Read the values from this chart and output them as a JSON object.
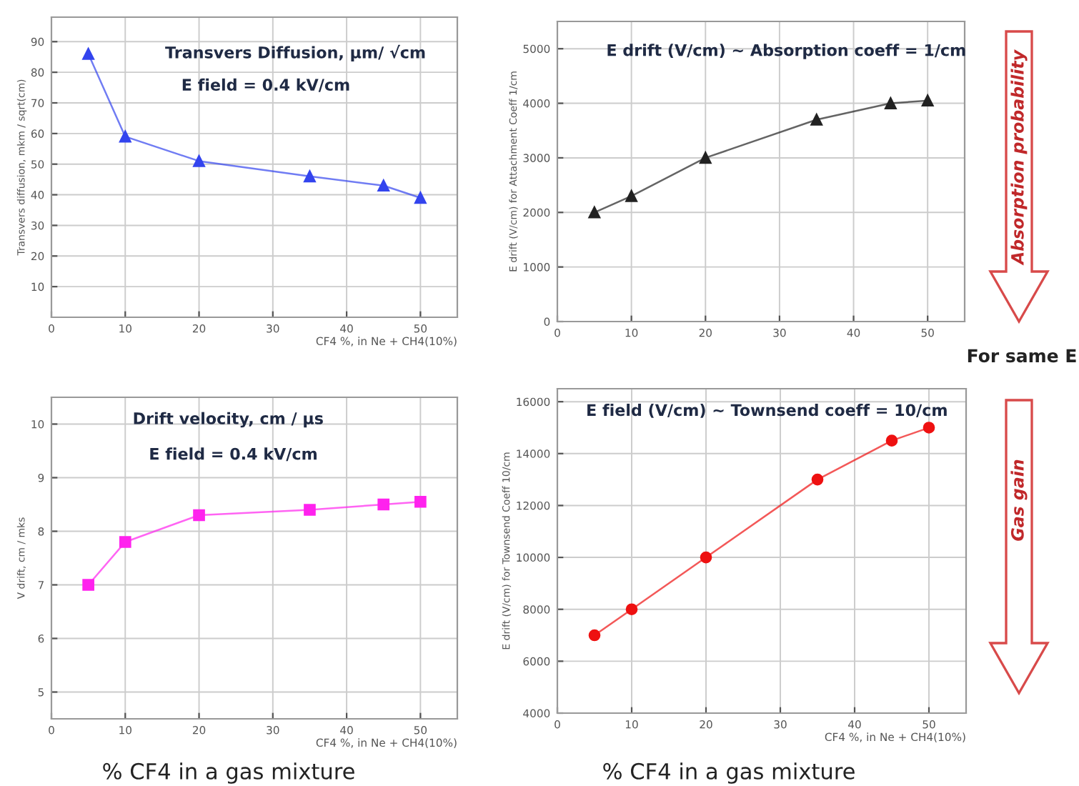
{
  "chart_data": [
    {
      "type": "line",
      "title": "Transvers Diffusion, µm/ √cm",
      "subtitle": "E field = 0.4 kV/cm",
      "xlabel": "CF4 %, in Ne + CH4(10%)",
      "ylabel": "Transvers diffusion, mkm / sqrt(cm)",
      "x": [
        5,
        10,
        20,
        35,
        45,
        50
      ],
      "series": [
        {
          "color": "#3344ee",
          "values": [
            86,
            59,
            51,
            46,
            43,
            39
          ]
        }
      ],
      "marker": "triangle",
      "xlim": [
        0,
        55
      ],
      "xticks": [
        0,
        10,
        20,
        30,
        40,
        50
      ],
      "ylim": [
        0,
        98
      ],
      "yticks": [
        10,
        20,
        30,
        40,
        50,
        60,
        70,
        80,
        90
      ],
      "grid": true
    },
    {
      "type": "line",
      "title": "E drift (V/cm) ~ Absorption coeff = 1/cm",
      "ylabel": "E drift (V/cm) for Attachment Coeff 1/cm",
      "x": [
        5,
        10,
        20,
        35,
        45,
        50
      ],
      "series": [
        {
          "color": "#222222",
          "values": [
            2000,
            2300,
            3000,
            3700,
            4000,
            4050
          ]
        }
      ],
      "marker": "triangle",
      "xlim": [
        0,
        55
      ],
      "xticks": [
        0,
        10,
        20,
        30,
        40,
        50
      ],
      "ylim": [
        0,
        5500
      ],
      "yticks": [
        0,
        1000,
        2000,
        3000,
        4000,
        5000
      ],
      "grid": true,
      "annotations": [
        "Absorption probability",
        "For same E"
      ]
    },
    {
      "type": "line",
      "title": "Drift velocity, cm / µs",
      "subtitle": "E field = 0.4 kV/cm",
      "xlabel": "CF4 %, in Ne + CH4(10%)",
      "ylabel": "V drift, cm / mks",
      "x": [
        5,
        10,
        20,
        35,
        45,
        50
      ],
      "series": [
        {
          "color": "#ff22ee",
          "values": [
            7.0,
            7.8,
            8.3,
            8.4,
            8.5,
            8.55
          ]
        }
      ],
      "marker": "square",
      "xlim": [
        0,
        55
      ],
      "xticks": [
        0,
        10,
        20,
        30,
        40,
        50
      ],
      "ylim": [
        4.5,
        10.5
      ],
      "yticks": [
        5,
        6,
        7,
        8,
        9,
        10
      ],
      "grid": true,
      "annotations": [
        "% CF4 in a gas mixture"
      ]
    },
    {
      "type": "line",
      "title": "E field (V/cm) ~ Townsend coeff = 10/cm",
      "xlabel": "CF4 %, in Ne + CH4(10%)",
      "ylabel": "E drift (V/cm) for Townsend Coeff 10/cm",
      "x": [
        5,
        10,
        20,
        35,
        45,
        50
      ],
      "series": [
        {
          "color": "#ee1111",
          "values": [
            7000,
            8000,
            10000,
            13000,
            14500,
            15000
          ]
        }
      ],
      "marker": "circle",
      "xlim": [
        0,
        55
      ],
      "xticks": [
        0,
        10,
        20,
        30,
        40,
        50
      ],
      "ylim": [
        4000,
        16500
      ],
      "yticks": [
        4000,
        6000,
        8000,
        10000,
        12000,
        14000,
        16000
      ],
      "grid": true,
      "annotations": [
        "Gas gain",
        "% CF4 in a gas mixture"
      ]
    }
  ]
}
